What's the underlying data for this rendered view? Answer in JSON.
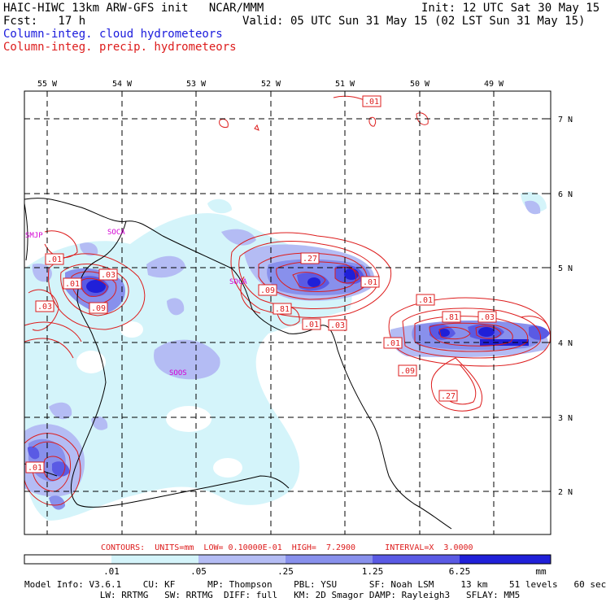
{
  "header": {
    "title": "HAIC-HIWC 13km ARW-GFS init   NCAR/MMM",
    "init": "Init: 12 UTC Sat 30 May 15",
    "fcst": "Fcst:   17 h",
    "valid": "Valid: 05 UTC Sun 31 May 15 (02 LST Sun 31 May 15)",
    "field1": "Column-integ. cloud hydrometeors",
    "field2": "Column-integ. precip. hydrometeors"
  },
  "colors": {
    "cloud_blue": "#1a1adc",
    "precip_red": "#dd1c1c",
    "shade_1": "#d4f4fa",
    "shade_2": "#b4bcf4",
    "shade_3": "#8890ec",
    "shade_4": "#5a5ae4",
    "shade_5": "#2020d8",
    "station": "#d400d4"
  },
  "axes": {
    "lon_labels": [
      "55 W",
      "54 W",
      "53 W",
      "52 W",
      "51 W",
      "50 W",
      "49 W"
    ],
    "lat_labels": [
      "7 N",
      "6 N",
      "5 N",
      "4 N",
      "3 N",
      "2 N"
    ]
  },
  "stations": [
    "SMJP",
    "SOCA",
    "SOCA",
    "SOOS"
  ],
  "contour_labels": [
    ".01",
    ".01",
    ".03",
    ".01",
    ".03",
    ".09",
    ".27",
    ".09",
    ".01",
    ".81",
    ".01",
    ".03",
    ".01",
    ".81",
    ".03",
    ".01",
    ".09",
    ".27",
    ".01"
  ],
  "contours_text": "CONTOURS:  UNITS=mm  LOW= 0.10000E-01  HIGH=  7.2900      INTERVAL=X  3.0000",
  "colorbar": {
    "labels": [
      ".01",
      ".05",
      ".25",
      "1.25",
      "6.25"
    ],
    "units": "mm"
  },
  "footer": {
    "line1": "Model Info: V3.6.1    CU: KF      MP: Thompson    PBL: YSU      SF: Noah LSM     13 km    51 levels   60 sec",
    "line2": "              LW: RRTMG   SW: RRTMG  DIFF: full   KM: 2D Smagor DAMP: Rayleigh3   SFLAY: MM5"
  }
}
